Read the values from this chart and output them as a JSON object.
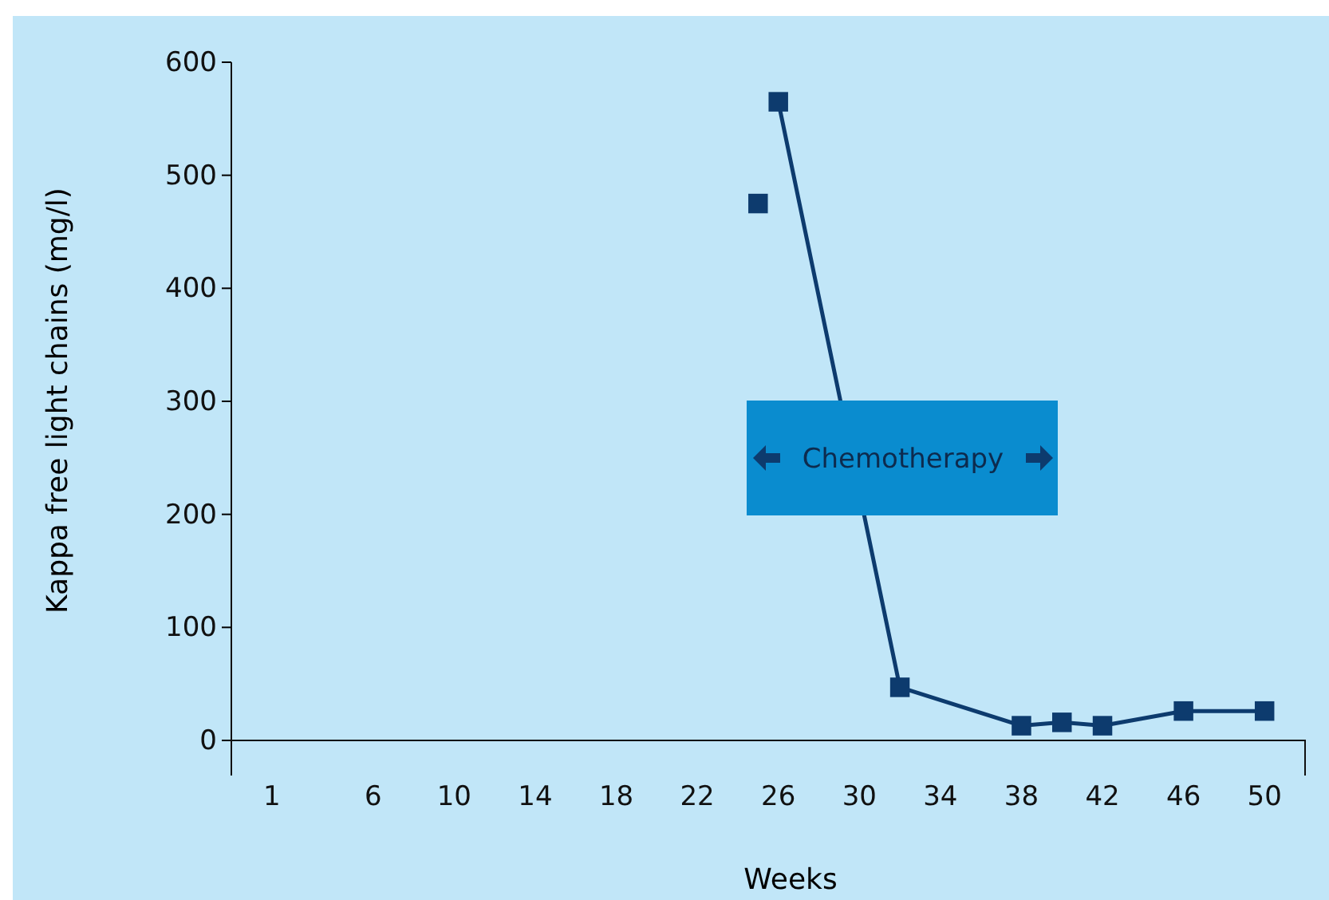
{
  "chart_data": {
    "type": "line",
    "xlabel": "Weeks",
    "ylabel": "Kappa free light chains (mg/l)",
    "xlim": [
      -1,
      52
    ],
    "ylim": [
      0,
      600
    ],
    "yticks": [
      0,
      100,
      200,
      300,
      400,
      500,
      600
    ],
    "xticks": [
      1,
      6,
      10,
      14,
      18,
      22,
      26,
      30,
      34,
      38,
      42,
      46,
      50
    ],
    "marker": "square",
    "series": [
      {
        "type": "scatter",
        "color": "#0d3b6e",
        "x": [
          25
        ],
        "values": [
          475
        ]
      },
      {
        "color": "#0d3b6e",
        "x": [
          26,
          32,
          38,
          40,
          42,
          46,
          50
        ],
        "values": [
          565,
          47,
          13,
          16,
          13,
          26,
          26
        ]
      }
    ],
    "annotations": [
      "Chemotherapy"
    ]
  }
}
